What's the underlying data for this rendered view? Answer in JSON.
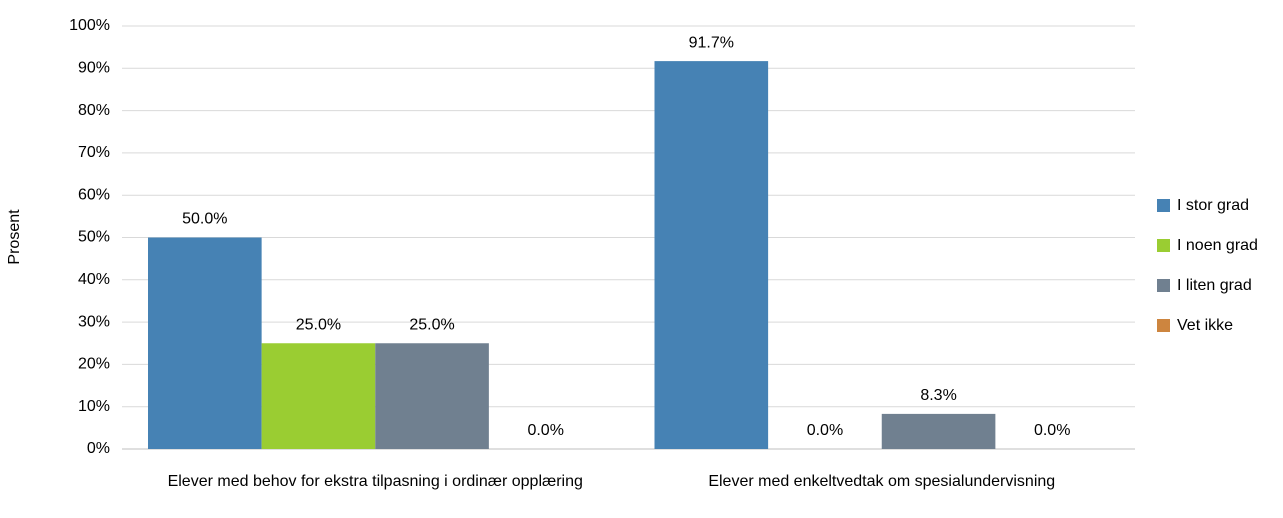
{
  "chart_data": {
    "type": "bar",
    "y_label": "Prosent",
    "categories": [
      "Elever med behov for ekstra tilpasning i ordinær opplæring",
      "Elever med enkeltvedtak om spesialundervisning"
    ],
    "series": [
      {
        "name": "I stor grad",
        "color": "#4682b4",
        "values": [
          50.0,
          91.7
        ],
        "value_labels": [
          "50.0%",
          "91.7%"
        ]
      },
      {
        "name": "I noen grad",
        "color": "#9acd32",
        "values": [
          25.0,
          0.0
        ],
        "value_labels": [
          "25.0%",
          "0.0%"
        ]
      },
      {
        "name": "I liten grad",
        "color": "#708090",
        "values": [
          25.0,
          8.3
        ],
        "value_labels": [
          "25.0%",
          "8.3%"
        ]
      },
      {
        "name": "Vet ikke",
        "color": "#cd853f",
        "values": [
          0.0,
          0.0
        ],
        "value_labels": [
          "0.0%",
          "0.0%"
        ]
      }
    ],
    "ylim": [
      0,
      100
    ],
    "yticks": [
      {
        "value": 0,
        "label": "0%"
      },
      {
        "value": 10,
        "label": "10%"
      },
      {
        "value": 20,
        "label": "20%"
      },
      {
        "value": 30,
        "label": "30%"
      },
      {
        "value": 40,
        "label": "40%"
      },
      {
        "value": 50,
        "label": "50%"
      },
      {
        "value": 60,
        "label": "60%"
      },
      {
        "value": 70,
        "label": "70%"
      },
      {
        "value": 80,
        "label": "80%"
      },
      {
        "value": 90,
        "label": "90%"
      },
      {
        "value": 100,
        "label": "100%"
      }
    ],
    "grid": true,
    "legend": "right"
  }
}
